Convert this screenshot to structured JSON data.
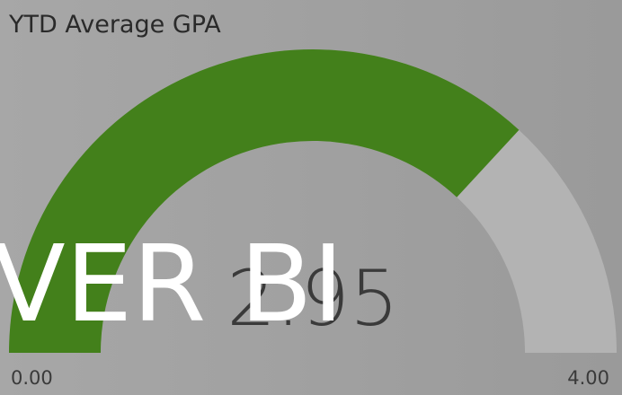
{
  "chart_data": {
    "type": "gauge",
    "title": "YTD Average GPA",
    "value": 2.95,
    "color": "#43801b",
    "track_color": "#b3b3b3",
    "ylim": [
      0,
      4
    ],
    "yticks": [
      {
        "value": 0,
        "label": "0.00"
      },
      {
        "value": 4,
        "label": "4.00"
      }
    ],
    "watermark": "VER BI"
  }
}
